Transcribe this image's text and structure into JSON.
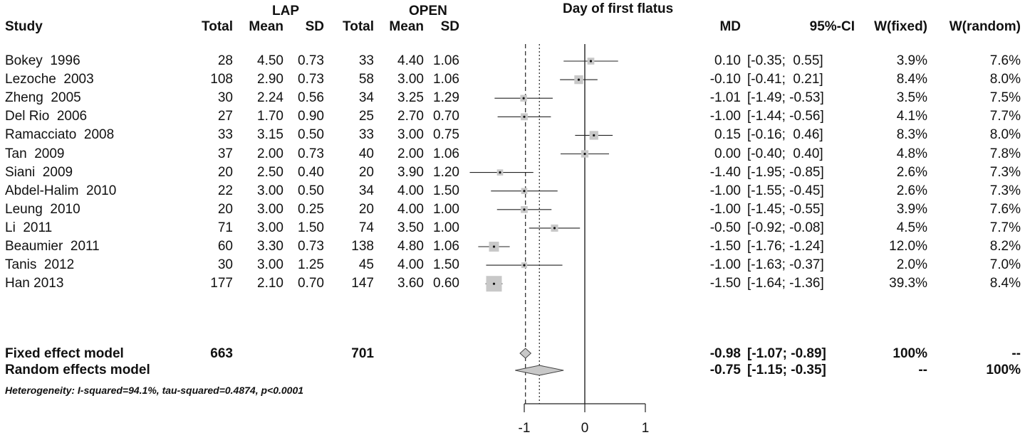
{
  "header": {
    "group1": "LAP",
    "group2": "OPEN",
    "plot_title": "Day of first flatus",
    "study": "Study",
    "total": "Total",
    "mean": "Mean",
    "sd": "SD",
    "md": "MD",
    "ci": "95%-CI",
    "wfixed": "W(fixed)",
    "wrandom": "W(random)"
  },
  "studies": [
    {
      "name": "Bokey  1996",
      "t1": "28",
      "m1": "4.50",
      "s1": "0.73",
      "t2": "33",
      "m2": "4.40",
      "s2": "1.06",
      "md": "0.10",
      "ci": "[-0.35;  0.55]",
      "wf": "3.9%",
      "wr": "7.6%"
    },
    {
      "name": "Lezoche  2003",
      "t1": "108",
      "m1": "2.90",
      "s1": "0.73",
      "t2": "58",
      "m2": "3.00",
      "s2": "1.06",
      "md": "-0.10",
      "ci": "[-0.41;  0.21]",
      "wf": "8.4%",
      "wr": "8.0%"
    },
    {
      "name": "Zheng  2005",
      "t1": "30",
      "m1": "2.24",
      "s1": "0.56",
      "t2": "34",
      "m2": "3.25",
      "s2": "1.29",
      "md": "-1.01",
      "ci": "[-1.49; -0.53]",
      "wf": "3.5%",
      "wr": "7.5%"
    },
    {
      "name": "Del Rio  2006",
      "t1": "27",
      "m1": "1.70",
      "s1": "0.90",
      "t2": "25",
      "m2": "2.70",
      "s2": "0.70",
      "md": "-1.00",
      "ci": "[-1.44; -0.56]",
      "wf": "4.1%",
      "wr": "7.7%"
    },
    {
      "name": "Ramacciato  2008",
      "t1": "33",
      "m1": "3.15",
      "s1": "0.50",
      "t2": "33",
      "m2": "3.00",
      "s2": "0.75",
      "md": "0.15",
      "ci": "[-0.16;  0.46]",
      "wf": "8.3%",
      "wr": "8.0%"
    },
    {
      "name": "Tan  2009",
      "t1": "37",
      "m1": "2.00",
      "s1": "0.73",
      "t2": "40",
      "m2": "2.00",
      "s2": "1.06",
      "md": "0.00",
      "ci": "[-0.40;  0.40]",
      "wf": "4.8%",
      "wr": "7.8%"
    },
    {
      "name": "Siani  2009",
      "t1": "20",
      "m1": "2.50",
      "s1": "0.40",
      "t2": "20",
      "m2": "3.90",
      "s2": "1.20",
      "md": "-1.40",
      "ci": "[-1.95; -0.85]",
      "wf": "2.6%",
      "wr": "7.3%"
    },
    {
      "name": "Abdel-Halim  2010",
      "t1": "22",
      "m1": "3.00",
      "s1": "0.50",
      "t2": "34",
      "m2": "4.00",
      "s2": "1.50",
      "md": "-1.00",
      "ci": "[-1.55; -0.45]",
      "wf": "2.6%",
      "wr": "7.3%"
    },
    {
      "name": "Leung  2010",
      "t1": "20",
      "m1": "3.00",
      "s1": "0.25",
      "t2": "20",
      "m2": "4.00",
      "s2": "1.00",
      "md": "-1.00",
      "ci": "[-1.45; -0.55]",
      "wf": "3.9%",
      "wr": "7.6%"
    },
    {
      "name": "Li  2011",
      "t1": "71",
      "m1": "3.00",
      "s1": "1.50",
      "t2": "74",
      "m2": "3.50",
      "s2": "1.00",
      "md": "-0.50",
      "ci": "[-0.92; -0.08]",
      "wf": "4.5%",
      "wr": "7.7%"
    },
    {
      "name": "Beaumier  2011",
      "t1": "60",
      "m1": "3.30",
      "s1": "0.73",
      "t2": "138",
      "m2": "4.80",
      "s2": "1.06",
      "md": "-1.50",
      "ci": "[-1.76; -1.24]",
      "wf": "12.0%",
      "wr": "8.2%"
    },
    {
      "name": "Tanis  2012",
      "t1": "30",
      "m1": "3.00",
      "s1": "1.25",
      "t2": "45",
      "m2": "4.00",
      "s2": "1.50",
      "md": "-1.00",
      "ci": "[-1.63; -0.37]",
      "wf": "2.0%",
      "wr": "7.0%"
    },
    {
      "name": "Han 2013",
      "t1": "177",
      "m1": "2.10",
      "s1": "0.70",
      "t2": "147",
      "m2": "3.60",
      "s2": "0.60",
      "md": "-1.50",
      "ci": "[-1.64; -1.36]",
      "wf": "39.3%",
      "wr": "8.4%"
    }
  ],
  "fixed": {
    "label": "Fixed effect model",
    "t1": "663",
    "t2": "701",
    "md": "-0.98",
    "ci": "[-1.07; -0.89]",
    "wf": "100%",
    "wr": "--"
  },
  "random": {
    "label": "Random effects model",
    "md": "-0.75",
    "ci": "[-1.15; -0.35]",
    "wf": "--",
    "wr": "100%"
  },
  "heterogeneity": "Heterogeneity: I-squared=94.1%, tau-squared=0.4874, p<0.0001",
  "chart_data": {
    "type": "scatter",
    "title": "Day of first flatus",
    "xlim": [
      -1.9,
      1
    ],
    "xticks": [
      "-1",
      "0",
      "1"
    ],
    "points": [
      {
        "md": 0.1,
        "lo": -0.35,
        "hi": 0.55,
        "w": 3.9
      },
      {
        "md": -0.1,
        "lo": -0.41,
        "hi": 0.21,
        "w": 8.4
      },
      {
        "md": -1.01,
        "lo": -1.49,
        "hi": -0.53,
        "w": 3.5
      },
      {
        "md": -1.0,
        "lo": -1.44,
        "hi": -0.56,
        "w": 4.1
      },
      {
        "md": 0.15,
        "lo": -0.16,
        "hi": 0.46,
        "w": 8.3
      },
      {
        "md": 0.0,
        "lo": -0.4,
        "hi": 0.4,
        "w": 4.8
      },
      {
        "md": -1.4,
        "lo": -1.95,
        "hi": -0.85,
        "w": 2.6
      },
      {
        "md": -1.0,
        "lo": -1.55,
        "hi": -0.45,
        "w": 2.6
      },
      {
        "md": -1.0,
        "lo": -1.45,
        "hi": -0.55,
        "w": 3.9
      },
      {
        "md": -0.5,
        "lo": -0.92,
        "hi": -0.08,
        "w": 4.5
      },
      {
        "md": -1.5,
        "lo": -1.76,
        "hi": -1.24,
        "w": 12.0
      },
      {
        "md": -1.0,
        "lo": -1.63,
        "hi": -0.37,
        "w": 2.0
      },
      {
        "md": -1.5,
        "lo": -1.64,
        "hi": -1.36,
        "w": 39.3
      }
    ],
    "fixed_diamond": {
      "md": -0.98,
      "lo": -1.07,
      "hi": -0.89
    },
    "random_diamond": {
      "md": -0.75,
      "lo": -1.15,
      "hi": -0.35
    },
    "reference_line": 0
  }
}
